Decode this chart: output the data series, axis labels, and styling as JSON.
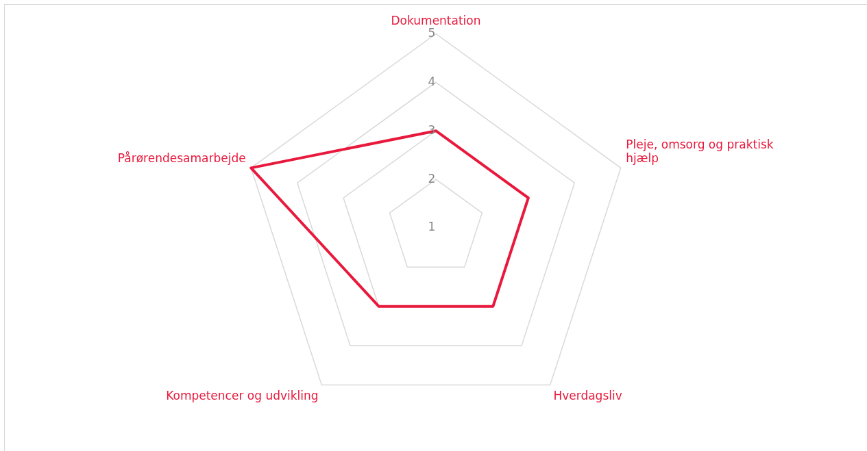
{
  "chart_data": {
    "type": "radar",
    "categories": [
      "Dokumentation",
      "Pleje, omsorg og praktisk hjælp",
      "Hverdagsliv",
      "Kompetencer og udvikling",
      "Pårørendesamarbejde"
    ],
    "series": [
      {
        "color": "#e8193c",
        "values": [
          3,
          3,
          3,
          3,
          5
        ]
      }
    ],
    "ylim": [
      1,
      5
    ],
    "yticks": [
      1,
      2,
      3,
      4,
      5
    ],
    "grid": true,
    "legend": false,
    "marker": "none",
    "line_style": "solid"
  }
}
